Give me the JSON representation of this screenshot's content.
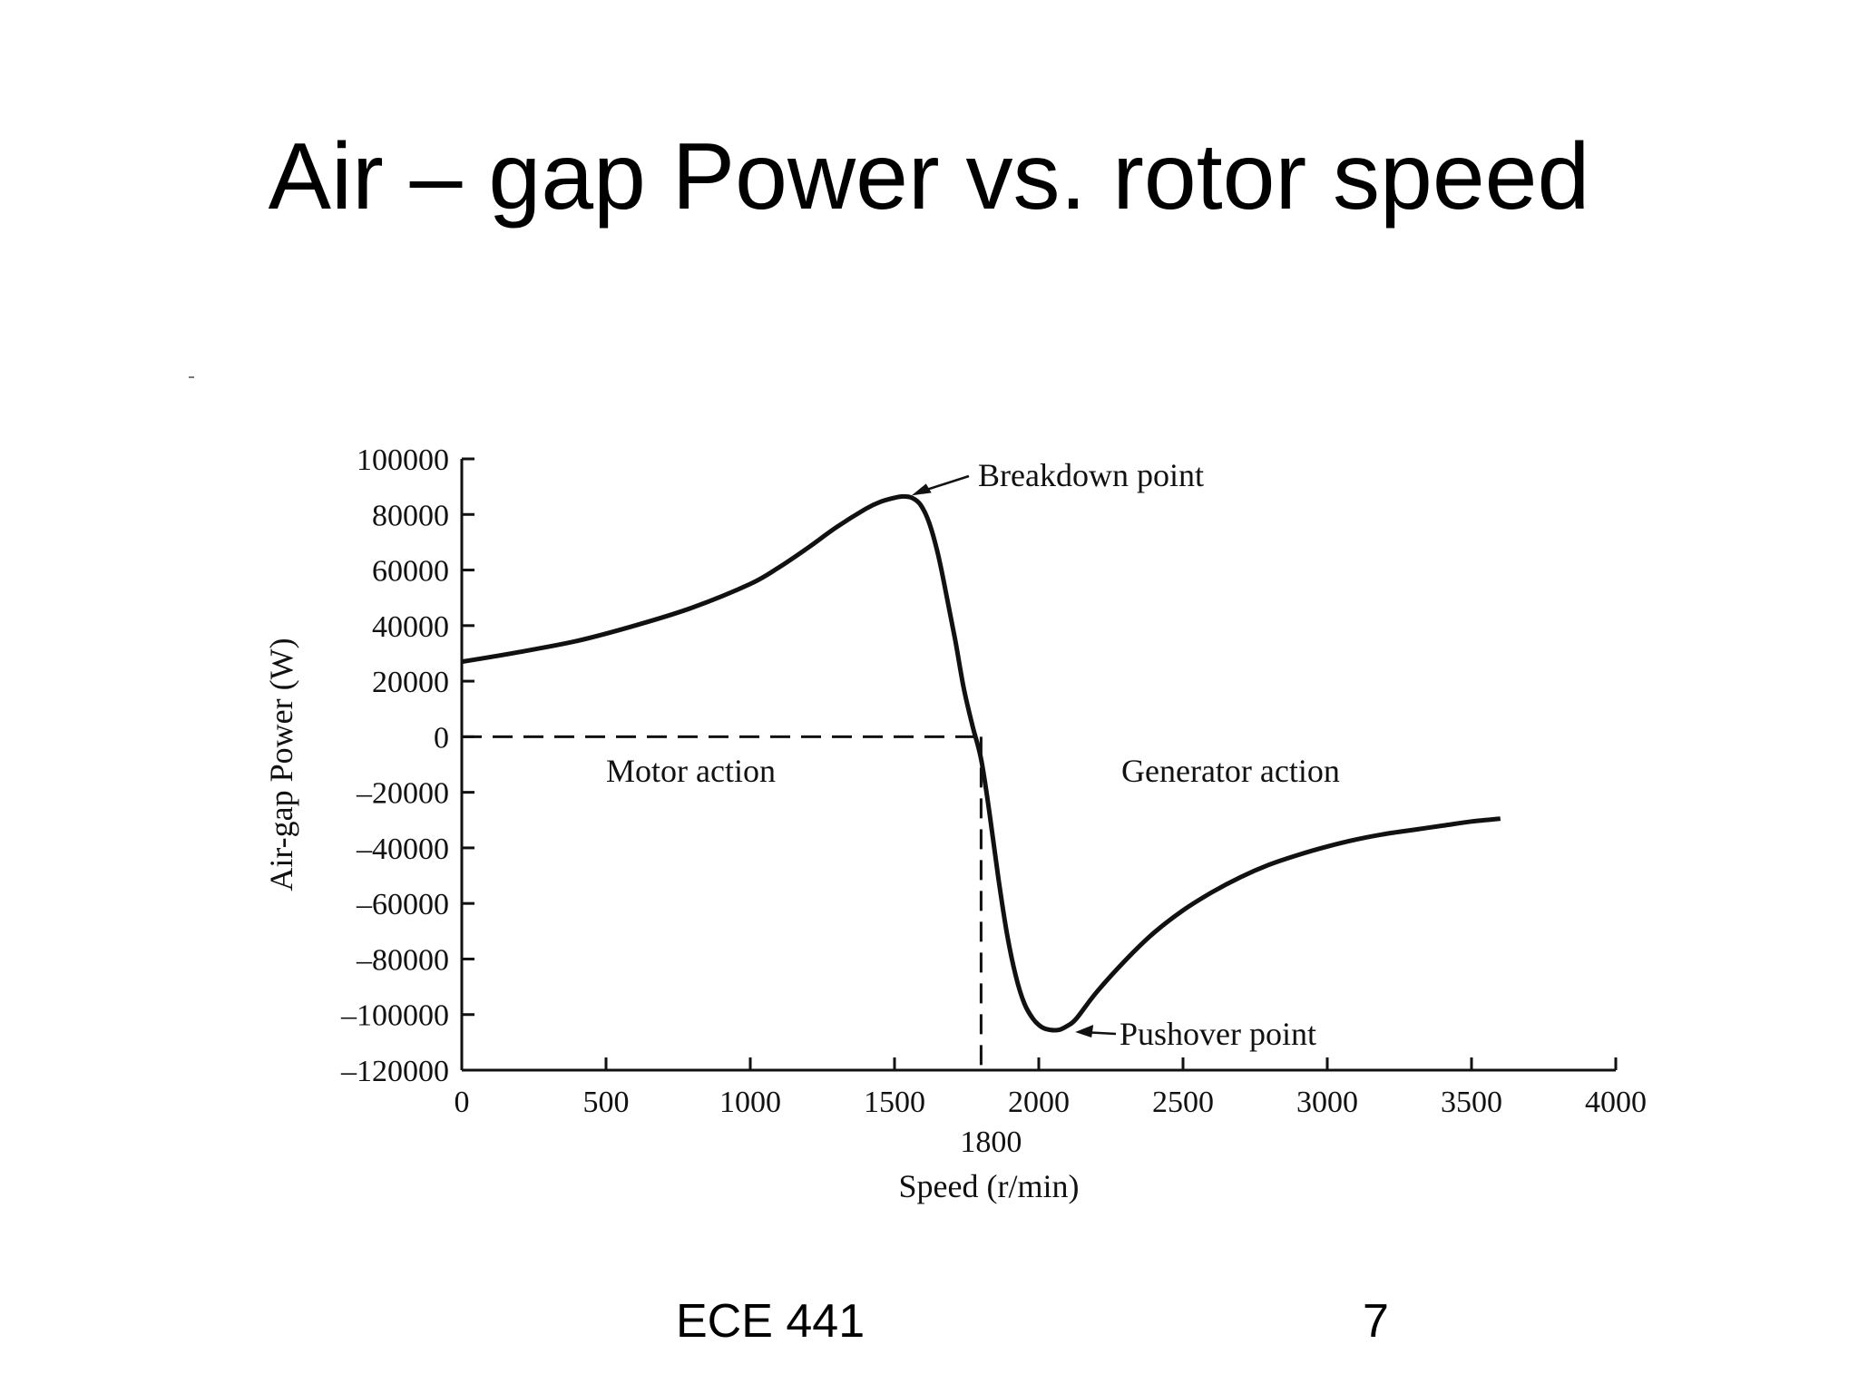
{
  "slide": {
    "title": "Air – gap Power vs. rotor speed",
    "footer_course": "ECE 441",
    "footer_page": "7"
  },
  "chart_data": {
    "type": "line",
    "title": "",
    "xlabel": "Speed (r/min)",
    "ylabel": "Air-gap Power (W)",
    "xlim": [
      0,
      4000
    ],
    "ylim": [
      -120000,
      100000
    ],
    "x_ticks": [
      0,
      500,
      1000,
      1500,
      2000,
      2500,
      3000,
      3500,
      4000
    ],
    "x_tick_labels": [
      "0",
      "500",
      "1000",
      "1500",
      "2000",
      "2500",
      "3000",
      "3500",
      "4000"
    ],
    "y_ticks": [
      100000,
      80000,
      60000,
      40000,
      20000,
      0,
      -20000,
      -40000,
      -60000,
      -80000,
      -100000,
      -120000
    ],
    "y_tick_labels": [
      "100000",
      "80000",
      "60000",
      "40000",
      "20000",
      "0",
      "–20000",
      "–40000",
      "–60000",
      "–80000",
      "–100000",
      "–120000"
    ],
    "grid": false,
    "extra_x_label": "1800",
    "synchronous_speed": 1800,
    "series": [
      {
        "x": [
          0,
          200,
          400,
          600,
          800,
          1000,
          1100,
          1200,
          1300,
          1400,
          1450,
          1500,
          1530,
          1560,
          1590,
          1620,
          1650,
          1680,
          1710,
          1740,
          1770,
          1800,
          1830,
          1860,
          1890,
          1920,
          1950,
          1980,
          2010,
          2040,
          2070,
          2100,
          2130,
          2200,
          2300,
          2400,
          2500,
          2600,
          2700,
          2800,
          2900,
          3000,
          3100,
          3200,
          3300,
          3400,
          3500,
          3600
        ],
        "y": [
          27000,
          30500,
          34500,
          40000,
          46500,
          55000,
          61000,
          68000,
          75500,
          82000,
          84500,
          86000,
          86500,
          86000,
          83500,
          77000,
          66000,
          51000,
          35000,
          17500,
          4000,
          -8000,
          -28000,
          -51000,
          -71000,
          -86000,
          -96000,
          -101500,
          -104500,
          -105500,
          -105500,
          -104000,
          -101500,
          -92000,
          -80500,
          -70500,
          -62500,
          -56000,
          -50500,
          -46000,
          -42500,
          -39500,
          -37000,
          -35000,
          -33500,
          -32000,
          -30500,
          -29500
        ]
      }
    ],
    "annotations": [
      {
        "text": "Breakdown point",
        "x": 1540,
        "y": 86500
      },
      {
        "text": "Pushover point",
        "x": 2120,
        "y": -105000
      },
      {
        "text": "Motor action"
      },
      {
        "text": "Generator action"
      }
    ]
  }
}
